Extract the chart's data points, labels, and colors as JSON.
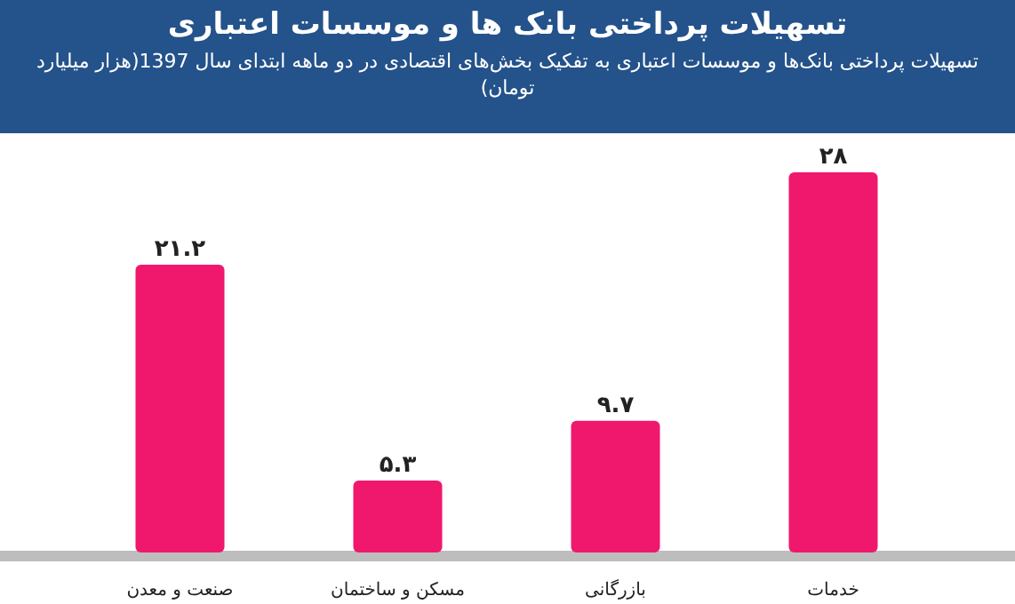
{
  "chart_data": {
    "type": "bar",
    "title": "تسهیلات پرداختی بانک ها و موسسات اعتباری",
    "subtitle": "تسهیلات پرداختی بانک‌ها و موسسات اعتباری به تفکیک بخش‌های اقتصادی در دو ماهه ابتدای سال 1397(هزار میلیارد تومان)",
    "categories": [
      "صنعت و معدن",
      "مسکن و ساختمان",
      "بازرگانی",
      "خدمات"
    ],
    "values": [
      21.2,
      5.3,
      9.7,
      28
    ],
    "value_labels": [
      "۲۱.۲",
      "۵.۳",
      "۹.۷",
      "۲۸"
    ],
    "color": "#f0186c"
  }
}
